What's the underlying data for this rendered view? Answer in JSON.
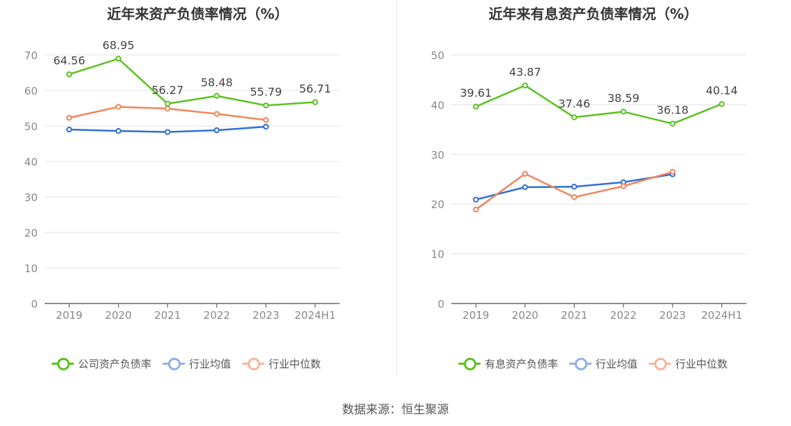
{
  "chart_data": [
    {
      "type": "line",
      "title": "近年来资产负债率情况（%）",
      "categories": [
        "2019",
        "2020",
        "2021",
        "2022",
        "2023",
        "2024H1"
      ],
      "ylim": [
        0,
        70
      ],
      "yticks": [
        0,
        10,
        20,
        30,
        40,
        50,
        60,
        70
      ],
      "grid": true,
      "legend_position": "bottom",
      "series": [
        {
          "name": "公司资产负债率",
          "color": "#5ac21f",
          "values": [
            64.56,
            68.95,
            56.27,
            58.48,
            55.79,
            56.71
          ],
          "labels": [
            "64.56",
            "68.95",
            "56.27",
            "58.48",
            "55.79",
            "56.71"
          ]
        },
        {
          "name": "行业均值",
          "color": "#2f6fd8",
          "values": [
            49.0,
            48.6,
            48.3,
            48.8,
            49.8,
            null
          ]
        },
        {
          "name": "行业中位数",
          "color": "#f0855a",
          "values": [
            52.3,
            55.4,
            54.9,
            53.4,
            51.7,
            null
          ]
        }
      ]
    },
    {
      "type": "line",
      "title": "近年来有息资产负债率情况（%）",
      "categories": [
        "2019",
        "2020",
        "2021",
        "2022",
        "2023",
        "2024H1"
      ],
      "ylim": [
        0,
        50
      ],
      "yticks": [
        0,
        10,
        20,
        30,
        40,
        50
      ],
      "grid": true,
      "legend_position": "bottom",
      "series": [
        {
          "name": "有息资产负债率",
          "color": "#5ac21f",
          "values": [
            39.61,
            43.87,
            37.46,
            38.59,
            36.18,
            40.14
          ],
          "labels": [
            "39.61",
            "43.87",
            "37.46",
            "38.59",
            "36.18",
            "40.14"
          ]
        },
        {
          "name": "行业均值",
          "color": "#2f6fd8",
          "values": [
            20.9,
            23.4,
            23.5,
            24.4,
            26.0,
            null
          ]
        },
        {
          "name": "行业中位数",
          "color": "#f0855a",
          "values": [
            18.9,
            26.1,
            21.4,
            23.6,
            26.5,
            null
          ]
        }
      ]
    }
  ],
  "legend_colors": {
    "green": "#5ac21f",
    "blue": "#2f6fd8",
    "orange": "#f0855a"
  },
  "source": "数据来源：恒生聚源"
}
